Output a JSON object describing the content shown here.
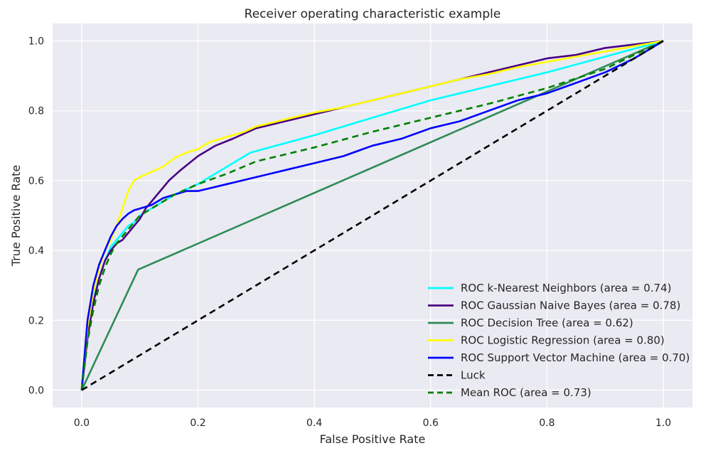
{
  "chart_data": {
    "type": "line",
    "title": "Receiver operating characteristic example",
    "xlabel": "False Positive Rate",
    "ylabel": "True Positive Rate",
    "xlim": [
      -0.05,
      1.05
    ],
    "ylim": [
      -0.05,
      1.05
    ],
    "x_ticks": [
      "0.0",
      "0.2",
      "0.4",
      "0.6",
      "0.8",
      "1.0"
    ],
    "y_ticks": [
      "0.0",
      "0.2",
      "0.4",
      "0.6",
      "0.8",
      "1.0"
    ],
    "grid": true,
    "legend_position": "lower-right",
    "background": "#eaeaf2",
    "series": [
      {
        "name": "ROC k-Nearest Neighbors (area = 0.74)",
        "color": "#00ffff",
        "dashed": false,
        "x": [
          0,
          0.005,
          0.01,
          0.02,
          0.03,
          0.04,
          0.05,
          0.06,
          0.07,
          0.08,
          0.09,
          0.1,
          0.13,
          0.16,
          0.2,
          0.25,
          0.29,
          0.4,
          0.5,
          0.6,
          0.7,
          0.8,
          0.9,
          1.0
        ],
        "y": [
          0,
          0.1,
          0.17,
          0.26,
          0.32,
          0.37,
          0.41,
          0.43,
          0.45,
          0.47,
          0.48,
          0.5,
          0.53,
          0.56,
          0.59,
          0.64,
          0.68,
          0.73,
          0.78,
          0.83,
          0.87,
          0.91,
          0.955,
          1.0
        ]
      },
      {
        "name": "ROC Gaussian Naive Bayes (area = 0.78)",
        "color": "#4b0082",
        "dashed": false,
        "x": [
          0,
          0.01,
          0.02,
          0.03,
          0.04,
          0.05,
          0.06,
          0.07,
          0.08,
          0.09,
          0.1,
          0.11,
          0.13,
          0.15,
          0.17,
          0.2,
          0.23,
          0.26,
          0.3,
          0.35,
          0.4,
          0.45,
          0.5,
          0.55,
          0.6,
          0.65,
          0.7,
          0.75,
          0.8,
          0.85,
          0.9,
          0.95,
          1.0
        ],
        "y": [
          0,
          0.15,
          0.25,
          0.32,
          0.37,
          0.4,
          0.42,
          0.43,
          0.45,
          0.47,
          0.49,
          0.52,
          0.56,
          0.6,
          0.63,
          0.67,
          0.7,
          0.72,
          0.75,
          0.77,
          0.79,
          0.81,
          0.83,
          0.85,
          0.87,
          0.89,
          0.91,
          0.93,
          0.95,
          0.96,
          0.98,
          0.99,
          1.0
        ]
      },
      {
        "name": "ROC Decision Tree (area = 0.62)",
        "color": "#2e8b57",
        "dashed": false,
        "x": [
          0,
          0.097,
          1.0
        ],
        "y": [
          0,
          0.345,
          1.0
        ]
      },
      {
        "name": "ROC Logistic Regression (area = 0.80)",
        "color": "#ffff00",
        "dashed": false,
        "x": [
          0,
          0.01,
          0.02,
          0.03,
          0.04,
          0.05,
          0.06,
          0.07,
          0.08,
          0.09,
          0.1,
          0.12,
          0.14,
          0.16,
          0.18,
          0.2,
          0.22,
          0.25,
          0.28,
          0.3,
          0.35,
          0.4,
          0.45,
          0.5,
          0.55,
          0.6,
          0.65,
          0.7,
          0.75,
          0.8,
          0.85,
          0.9,
          0.95,
          1.0
        ],
        "y": [
          0,
          0.18,
          0.28,
          0.35,
          0.4,
          0.43,
          0.47,
          0.52,
          0.57,
          0.6,
          0.61,
          0.625,
          0.64,
          0.665,
          0.68,
          0.69,
          0.71,
          0.725,
          0.74,
          0.755,
          0.775,
          0.795,
          0.81,
          0.83,
          0.85,
          0.87,
          0.89,
          0.905,
          0.925,
          0.94,
          0.955,
          0.97,
          0.985,
          1.0
        ]
      },
      {
        "name": "ROC Support Vector Machine (area = 0.70)",
        "color": "#0000ff",
        "dashed": false,
        "x": [
          0,
          0.01,
          0.02,
          0.03,
          0.04,
          0.05,
          0.06,
          0.07,
          0.08,
          0.09,
          0.1,
          0.12,
          0.14,
          0.16,
          0.18,
          0.2,
          0.25,
          0.3,
          0.35,
          0.4,
          0.45,
          0.5,
          0.55,
          0.6,
          0.65,
          0.7,
          0.75,
          0.8,
          0.85,
          0.9,
          0.95,
          1.0
        ],
        "y": [
          0,
          0.2,
          0.3,
          0.36,
          0.4,
          0.44,
          0.47,
          0.49,
          0.505,
          0.515,
          0.52,
          0.53,
          0.55,
          0.56,
          0.57,
          0.57,
          0.59,
          0.61,
          0.63,
          0.65,
          0.67,
          0.7,
          0.72,
          0.75,
          0.77,
          0.8,
          0.83,
          0.85,
          0.88,
          0.91,
          0.95,
          1.0
        ]
      },
      {
        "name": "Luck",
        "color": "#000000",
        "dashed": true,
        "x": [
          0,
          1
        ],
        "y": [
          0,
          1
        ]
      },
      {
        "name": "Mean ROC (area = 0.73)",
        "color": "#008000",
        "dashed": true,
        "x": [
          0,
          0.01,
          0.02,
          0.03,
          0.04,
          0.05,
          0.06,
          0.07,
          0.08,
          0.09,
          0.1,
          0.13,
          0.16,
          0.2,
          0.25,
          0.3,
          0.4,
          0.5,
          0.6,
          0.7,
          0.8,
          0.9,
          1.0
        ],
        "y": [
          0,
          0.14,
          0.23,
          0.3,
          0.35,
          0.39,
          0.42,
          0.44,
          0.46,
          0.48,
          0.5,
          0.53,
          0.56,
          0.59,
          0.62,
          0.655,
          0.695,
          0.74,
          0.78,
          0.82,
          0.865,
          0.92,
          1.0
        ]
      }
    ]
  }
}
